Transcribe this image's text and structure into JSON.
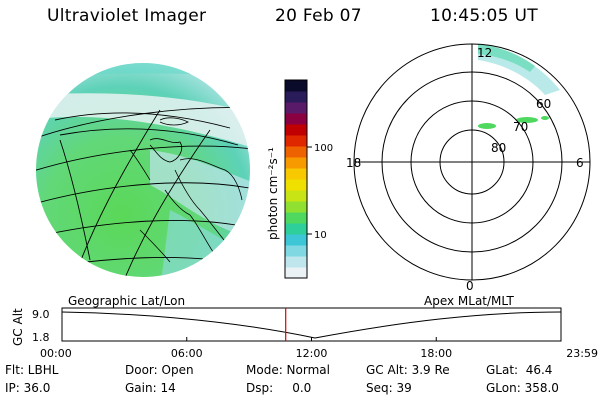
{
  "header": {
    "instrument": "Ultraviolet Imager",
    "date": "20 Feb 07",
    "time": "10:45:05 UT"
  },
  "colorbar": {
    "unit_label": "photon cm⁻²s⁻¹",
    "ticks": [
      "100",
      "10"
    ],
    "colors": [
      "#eaf2f6",
      "#bfe6ec",
      "#7fd8e2",
      "#3cc6d6",
      "#2ecf9a",
      "#4fd860",
      "#8fe030",
      "#c8e414",
      "#f0e000",
      "#f8c800",
      "#f79a00",
      "#ef6200",
      "#e02800",
      "#c00000",
      "#8a0040",
      "#5a1a6a",
      "#2a1b5a",
      "#0a0a2a"
    ]
  },
  "polar": {
    "mlt_labels": {
      "top": "12",
      "bottom": "0",
      "left": "18",
      "right": "6"
    },
    "lat_labels": [
      "60",
      "70",
      "80"
    ]
  },
  "map_title": "Geographic Lat/Lon",
  "polar_title": "Apex MLat/MLT",
  "timeline": {
    "ylabel": "GC Alt",
    "ytick_top": "9.0",
    "ytick_bottom": "1.8",
    "xticks": [
      "00:00",
      "06:00",
      "12:00",
      "18:00",
      "23:59"
    ],
    "current_time_fraction": 0.4483
  },
  "status": {
    "row1": {
      "flt": "Flt: LBHL",
      "door": "Door: Open",
      "mode": "Mode: Normal",
      "gcalt": "GC Alt: 3.9 Re",
      "glat": "GLat:  46.4"
    },
    "row2": {
      "ip": "IP: 36.0",
      "gain": "Gain: 14",
      "dsp": "Dsp:     0.0",
      "seq": "Seq: 39",
      "glon": "GLon: 358.0"
    }
  }
}
